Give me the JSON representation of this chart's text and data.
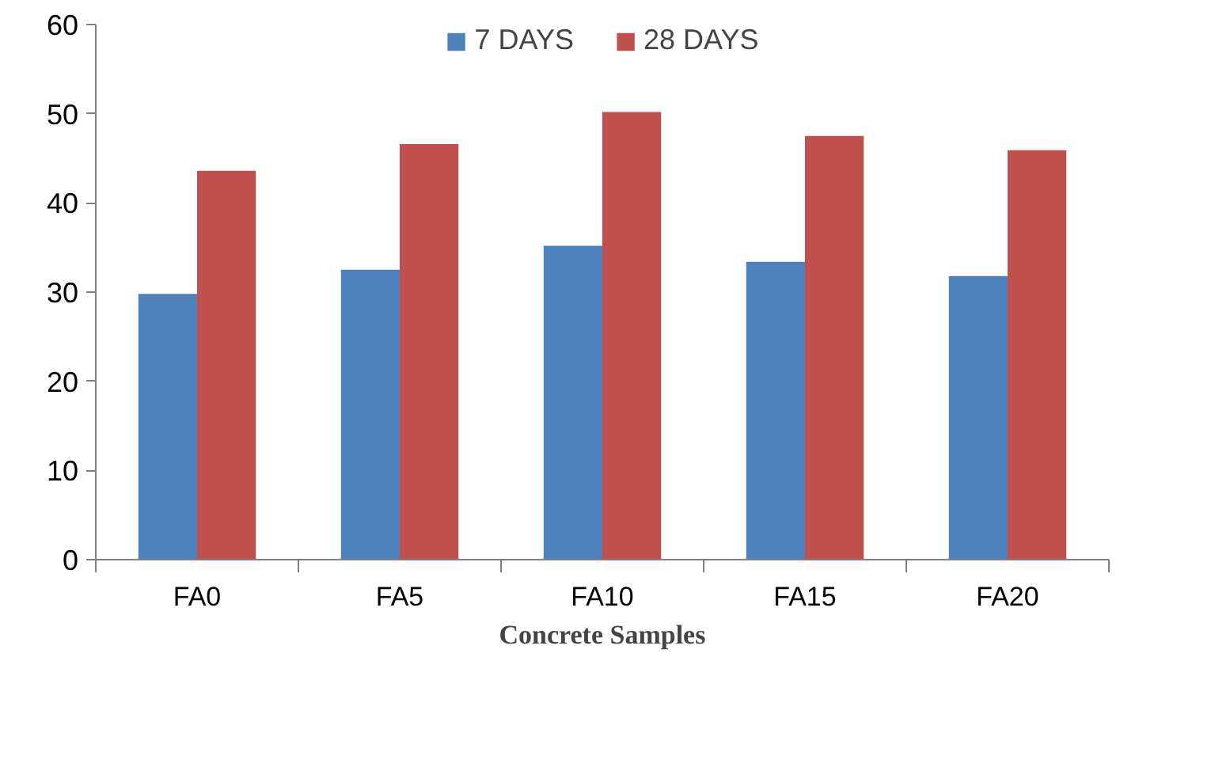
{
  "chart_data": {
    "type": "bar",
    "xlabel": "Concrete Samples",
    "categories": [
      "FA0",
      "FA5",
      "FA10",
      "FA15",
      "FA20"
    ],
    "series": [
      {
        "name": "7 DAYS",
        "color": "#4f81bd",
        "values": [
          29.8,
          32.5,
          35.2,
          33.4,
          31.8
        ]
      },
      {
        "name": "28 DAYS",
        "color": "#c0504d",
        "values": [
          43.6,
          46.6,
          50.2,
          47.5,
          45.9
        ]
      }
    ],
    "ylim": [
      0,
      60
    ],
    "yticks": [
      0,
      10,
      20,
      30,
      40,
      50,
      60
    ],
    "grid": false,
    "legend": "top"
  }
}
